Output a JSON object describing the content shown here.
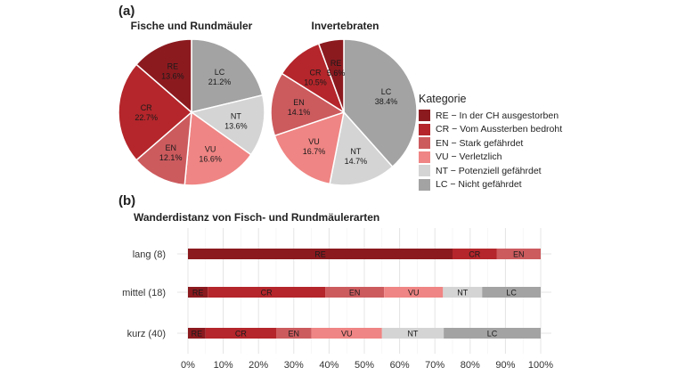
{
  "figure": {
    "panel_a_label": "(a)",
    "panel_b_label": "(b)",
    "pie_titles": [
      "Fische und Rundmäuler",
      "Invertebraten"
    ],
    "legend_title": "Kategorie",
    "legend": [
      {
        "key": "RE",
        "text": "RE − In der CH ausgestorben",
        "color": "#8b1a1f"
      },
      {
        "key": "CR",
        "text": "CR − Vom Aussterben bedroht",
        "color": "#b4262b"
      },
      {
        "key": "EN",
        "text": "EN − Stark gefährdet",
        "color": "#cc5b5e"
      },
      {
        "key": "VU",
        "text": "VU − Verletzlich",
        "color": "#ef8584"
      },
      {
        "key": "NT",
        "text": "NT − Potenziell gefährdet",
        "color": "#d4d4d4"
      },
      {
        "key": "LC",
        "text": "LC − Nicht gefährdet",
        "color": "#a3a3a3"
      }
    ],
    "bar_title": "Wanderdistanz von Fisch- und Rundmäulerarten"
  },
  "chart_data": [
    {
      "type": "pie",
      "title": "Fische und Rundmäuler",
      "slices": [
        {
          "label": "LC",
          "value": 21.2,
          "text": "21.2%"
        },
        {
          "label": "NT",
          "value": 13.6,
          "text": "13.6%"
        },
        {
          "label": "VU",
          "value": 16.6,
          "text": "16.6%"
        },
        {
          "label": "EN",
          "value": 12.1,
          "text": "12.1%"
        },
        {
          "label": "CR",
          "value": 22.7,
          "text": "22.7%"
        },
        {
          "label": "RE",
          "value": 13.6,
          "text": "13.6%"
        }
      ]
    },
    {
      "type": "pie",
      "title": "Invertebraten",
      "slices": [
        {
          "label": "LC",
          "value": 38.4,
          "text": "38.4%"
        },
        {
          "label": "NT",
          "value": 14.7,
          "text": "14.7%"
        },
        {
          "label": "VU",
          "value": 16.7,
          "text": "16.7%"
        },
        {
          "label": "EN",
          "value": 14.1,
          "text": "14.1%"
        },
        {
          "label": "CR",
          "value": 10.5,
          "text": "10.5%"
        },
        {
          "label": "RE",
          "value": 5.6,
          "text": "5.6%"
        }
      ]
    },
    {
      "type": "bar",
      "orientation": "horizontal",
      "stacked": true,
      "title": "Wanderdistanz von Fisch- und Rundmäulerarten",
      "categories": [
        "lang (8)",
        "mittel (18)",
        "kurz (40)"
      ],
      "series": [
        {
          "name": "RE",
          "values": [
            75.0,
            5.6,
            5.0
          ]
        },
        {
          "name": "CR",
          "values": [
            12.5,
            33.3,
            20.0
          ]
        },
        {
          "name": "EN",
          "values": [
            12.5,
            16.7,
            10.0
          ]
        },
        {
          "name": "VU",
          "values": [
            0,
            16.7,
            20.0
          ]
        },
        {
          "name": "NT",
          "values": [
            0,
            11.1,
            17.5
          ]
        },
        {
          "name": "LC",
          "values": [
            0,
            16.6,
            27.5
          ]
        }
      ],
      "xlim": [
        0,
        100
      ],
      "xticks": [
        "0%",
        "10%",
        "20%",
        "30%",
        "40%",
        "50%",
        "60%",
        "70%",
        "80%",
        "90%",
        "100%"
      ],
      "grid": true
    }
  ]
}
